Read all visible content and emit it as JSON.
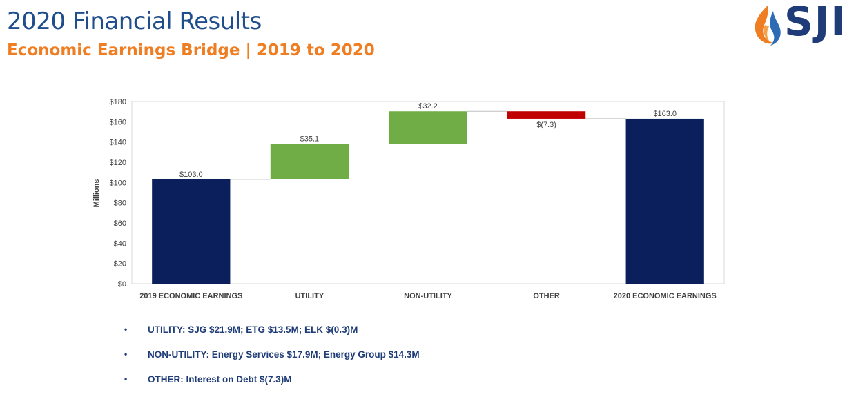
{
  "header": {
    "title": "2020 Financial Results",
    "subtitle": "Economic Earnings Bridge | 2019 to 2020",
    "logo_text": "SJI"
  },
  "colors": {
    "title": "#1f4e8c",
    "subtitle": "#ef7d22",
    "total_bar": "#0b1f5c",
    "increase_bar": "#70ad47",
    "decrease_bar": "#c00000"
  },
  "chart_data": {
    "type": "bar",
    "subtype": "waterfall",
    "ylabel": "Millions",
    "ylim": [
      0,
      180
    ],
    "y_ticks": [
      "$0",
      "$20",
      "$40",
      "$60",
      "$80",
      "$100",
      "$120",
      "$140",
      "$160",
      "$180"
    ],
    "grid": false,
    "categories": [
      "2019 ECONOMIC EARNINGS",
      "UTILITY",
      "NON-UTILITY",
      "OTHER",
      "2020 ECONOMIC EARNINGS"
    ],
    "values": [
      103.0,
      35.1,
      32.2,
      -7.3,
      163.0
    ],
    "kinds": [
      "total",
      "increase",
      "increase",
      "decrease",
      "total"
    ],
    "data_labels": [
      "$103.0",
      "$35.1",
      "$32.2",
      "$(7.3)",
      "$163.0"
    ]
  },
  "bullets": [
    "UTILITY:  SJG $21.9M; ETG $13.5M; ELK $(0.3)M",
    "NON-UTILITY:  Energy Services $17.9M; Energy Group $14.3M",
    "OTHER:  Interest on Debt $(7.3)M"
  ]
}
